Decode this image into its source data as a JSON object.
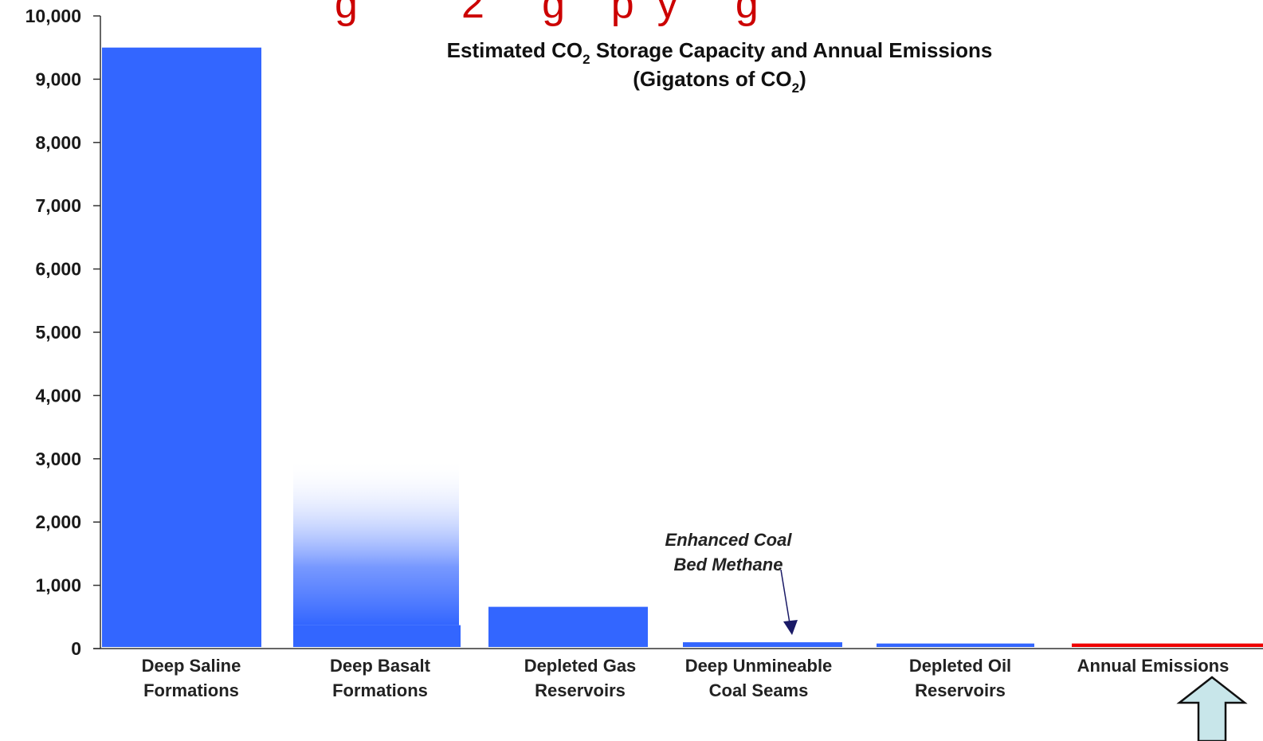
{
  "page": {
    "heading_fragment": "g         2     g    p  y     g",
    "heading_color": "#cc0000"
  },
  "chart_data": {
    "type": "bar",
    "title_line1_pre": "Estimated CO",
    "title_line1_sub": "2",
    "title_line1_post": " Storage Capacity and Annual Emissions",
    "title_line2_pre": "(Gigatons of CO",
    "title_line2_sub": "2",
    "title_line2_post": ")",
    "ylim": [
      0,
      10000
    ],
    "yticks": [
      "0",
      "1,000",
      "2,000",
      "3,000",
      "4,000",
      "5,000",
      "6,000",
      "7,000",
      "8,000",
      "9,000",
      "10,000"
    ],
    "grid": false,
    "categories": [
      [
        "Deep Saline",
        "Formations"
      ],
      [
        "Deep Basalt",
        "Formations"
      ],
      [
        "Depleted Gas",
        "Reservoirs"
      ],
      [
        "Deep Unmineable",
        "Coal Seams"
      ],
      [
        "Depleted Oil",
        "Reservoirs"
      ],
      [
        "Annual Emissions"
      ]
    ],
    "values": [
      9500,
      370,
      660,
      100,
      80,
      80
    ],
    "range_upper": [
      null,
      3000,
      null,
      null,
      null,
      null
    ],
    "bar_color": "#3366ff",
    "emissions_color": "#ee0000",
    "emissions_label_color": "#cc0000",
    "annotation": {
      "line1": "Enhanced Coal",
      "line2": "Bed Methane",
      "points_to_category": 3
    },
    "up_arrow_color": "#c8e6ea"
  }
}
